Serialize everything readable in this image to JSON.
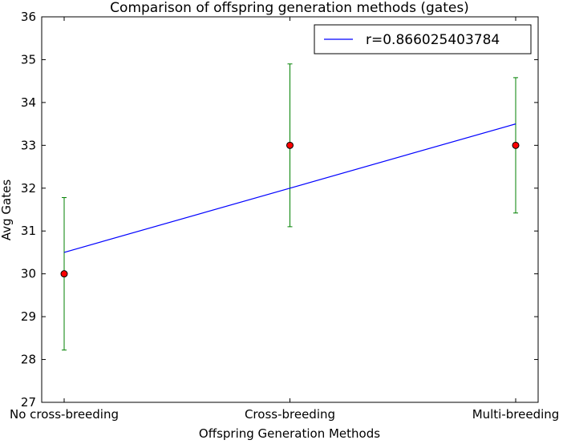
{
  "chart_data": {
    "type": "scatter",
    "title": "Comparison of offspring generation methods (gates)",
    "xlabel": "Offspring Generation Methods",
    "ylabel": "Avg Gates",
    "categories": [
      "No cross-breeding",
      "Cross-breeding",
      "Multi-breeding"
    ],
    "ylim": [
      27,
      36
    ],
    "yticks": [
      27,
      28,
      29,
      30,
      31,
      32,
      33,
      34,
      35,
      36
    ],
    "grid": false,
    "legend_position": "top-right",
    "series": [
      {
        "kind": "points_with_errorbars",
        "values": [
          30,
          33,
          33
        ],
        "error_low": [
          28.22,
          31.1,
          31.42
        ],
        "error_high": [
          31.78,
          34.9,
          34.58
        ],
        "marker_color": "#ff0000",
        "errorbar_color": "#008000"
      },
      {
        "kind": "fit_line",
        "name": "r=0.866025403784",
        "values": [
          30.5,
          32.0,
          33.5
        ],
        "color": "#0000ff"
      }
    ]
  }
}
